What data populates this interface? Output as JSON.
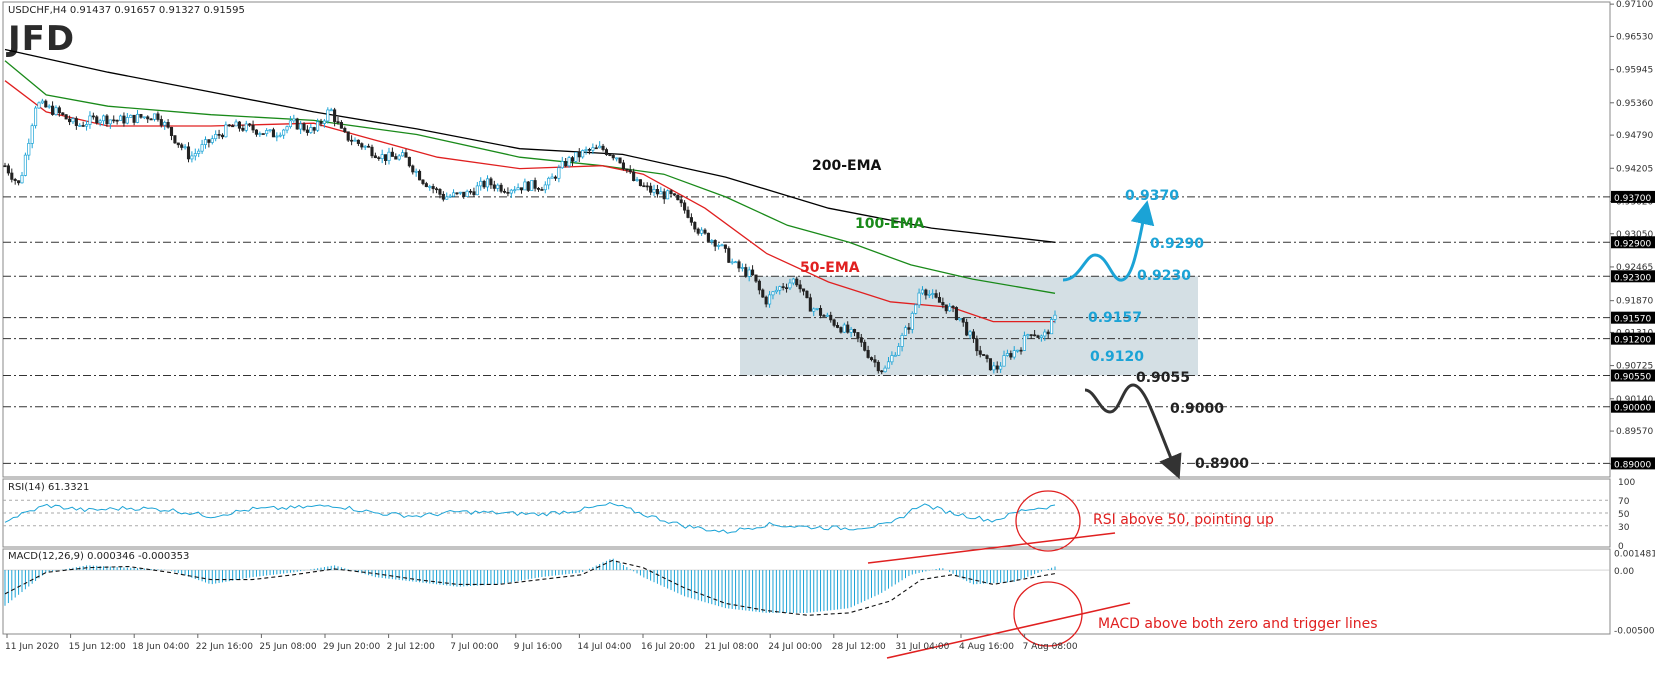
{
  "header": {
    "symbol_line": "USDCHF,H4  0.91437 0.91657 0.91327 0.91595",
    "logo": "JFD"
  },
  "chart_data": {
    "type": "candlestick",
    "symbol": "USDCHF",
    "timeframe": "H4",
    "ohlc_header": {
      "open": 0.91437,
      "high": 0.91657,
      "low": 0.91327,
      "close": 0.91595
    },
    "ylim": [
      0.8876,
      0.9712
    ],
    "price_ticks": [
      "0.97100",
      "0.96530",
      "0.95945",
      "0.95360",
      "0.94790",
      "0.94205",
      "0.93620",
      "0.93050",
      "0.92465",
      "0.91870",
      "0.91310",
      "0.90725",
      "0.90140",
      "0.89570",
      "0.88990"
    ],
    "x_tick_labels": [
      "11 Jun 2020",
      "15 Jun 12:00",
      "18 Jun 04:00",
      "22 Jun 16:00",
      "25 Jun 08:00",
      "29 Jun 20:00",
      "2 Jul 12:00",
      "7 Jul 00:00",
      "9 Jul 16:00",
      "14 Jul 04:00",
      "16 Jul 20:00",
      "21 Jul 08:00",
      "24 Jul 00:00",
      "28 Jul 12:00",
      "31 Jul 04:00",
      "4 Aug 16:00",
      "7 Aug 08:00"
    ],
    "price_path": [
      [
        0,
        0.9425
      ],
      [
        0.7,
        0.939
      ],
      [
        1.5,
        0.9535
      ],
      [
        2.5,
        0.952
      ],
      [
        3.5,
        0.9495
      ],
      [
        4.5,
        0.951
      ],
      [
        5.5,
        0.9505
      ],
      [
        6.5,
        0.951
      ],
      [
        7.4,
        0.9515
      ],
      [
        8.2,
        0.9475
      ],
      [
        9.0,
        0.944
      ],
      [
        10.0,
        0.947
      ],
      [
        11.0,
        0.9495
      ],
      [
        12.0,
        0.949
      ],
      [
        13.0,
        0.948
      ],
      [
        14.0,
        0.95
      ],
      [
        15.0,
        0.9485
      ],
      [
        15.8,
        0.9525
      ],
      [
        16.4,
        0.948
      ],
      [
        17.4,
        0.946
      ],
      [
        18.4,
        0.944
      ],
      [
        19.4,
        0.944
      ],
      [
        20.3,
        0.94
      ],
      [
        21.3,
        0.937
      ],
      [
        22.4,
        0.9375
      ],
      [
        23.4,
        0.9395
      ],
      [
        24.3,
        0.9385
      ],
      [
        25.3,
        0.939
      ],
      [
        26.3,
        0.939
      ],
      [
        27.2,
        0.943
      ],
      [
        28.2,
        0.945
      ],
      [
        29.0,
        0.9455
      ],
      [
        29.8,
        0.944
      ],
      [
        30.6,
        0.9395
      ],
      [
        31.4,
        0.938
      ],
      [
        32.4,
        0.937
      ],
      [
        33.2,
        0.934
      ],
      [
        33.8,
        0.9305
      ],
      [
        34.6,
        0.929
      ],
      [
        35.4,
        0.925
      ],
      [
        36.3,
        0.923
      ],
      [
        36.9,
        0.9185
      ],
      [
        37.6,
        0.921
      ],
      [
        38.4,
        0.9225
      ],
      [
        39.0,
        0.918
      ],
      [
        39.8,
        0.916
      ],
      [
        40.6,
        0.914
      ],
      [
        41.4,
        0.912
      ],
      [
        42.2,
        0.908
      ],
      [
        42.7,
        0.9062
      ],
      [
        43.4,
        0.911
      ],
      [
        44.0,
        0.915
      ],
      [
        44.5,
        0.9215
      ],
      [
        45.1,
        0.919
      ],
      [
        45.8,
        0.9175
      ],
      [
        46.4,
        0.9155
      ],
      [
        47.0,
        0.9115
      ],
      [
        47.6,
        0.908
      ],
      [
        48.1,
        0.9065
      ],
      [
        48.7,
        0.909
      ],
      [
        49.3,
        0.9105
      ],
      [
        49.8,
        0.9135
      ],
      [
        50.4,
        0.912
      ],
      [
        51.0,
        0.9155
      ]
    ],
    "series": [
      {
        "name": "200-EMA",
        "color": "#000000",
        "values": [
          [
            0,
            0.963
          ],
          [
            5,
            0.959
          ],
          [
            10,
            0.9555
          ],
          [
            15,
            0.952
          ],
          [
            20,
            0.949
          ],
          [
            25,
            0.9455
          ],
          [
            30,
            0.9445
          ],
          [
            35,
            0.9405
          ],
          [
            40,
            0.935
          ],
          [
            45,
            0.9315
          ],
          [
            51,
            0.929
          ]
        ]
      },
      {
        "name": "100-EMA",
        "color": "#1a8a1a",
        "values": [
          [
            0,
            0.961
          ],
          [
            2,
            0.955
          ],
          [
            5,
            0.953
          ],
          [
            10,
            0.9515
          ],
          [
            15,
            0.9505
          ],
          [
            20,
            0.948
          ],
          [
            25,
            0.944
          ],
          [
            29,
            0.9425
          ],
          [
            32,
            0.941
          ],
          [
            35,
            0.937
          ],
          [
            38,
            0.932
          ],
          [
            41,
            0.929
          ],
          [
            44,
            0.925
          ],
          [
            47,
            0.9225
          ],
          [
            51,
            0.92
          ]
        ]
      },
      {
        "name": "50-EMA",
        "color": "#e02020",
        "values": [
          [
            0,
            0.9575
          ],
          [
            2,
            0.952
          ],
          [
            5,
            0.9495
          ],
          [
            10,
            0.9495
          ],
          [
            15,
            0.95
          ],
          [
            18,
            0.947
          ],
          [
            21,
            0.944
          ],
          [
            25,
            0.942
          ],
          [
            29,
            0.9425
          ],
          [
            31,
            0.941
          ],
          [
            34,
            0.935
          ],
          [
            37,
            0.927
          ],
          [
            40,
            0.922
          ],
          [
            43,
            0.9185
          ],
          [
            46,
            0.9175
          ],
          [
            48,
            0.915
          ],
          [
            51,
            0.915
          ]
        ]
      }
    ],
    "horizontal_levels": [
      "0.93700",
      "0.92900",
      "0.92300",
      "0.91570",
      "0.91200",
      "0.90550",
      "0.90000",
      "0.89000"
    ],
    "level_values": [
      0.937,
      0.929,
      0.923,
      0.9157,
      0.912,
      0.9055,
      0.9,
      0.89
    ],
    "range_box": {
      "top": 0.923,
      "bottom": 0.9055,
      "color": "#ccd9df"
    },
    "annotations": {
      "ema_labels": [
        "200-EMA",
        "100-EMA",
        "50-EMA"
      ],
      "blue_labels": [
        "0.9370",
        "0.9290",
        "0.9230",
        "0.9157",
        "0.9120"
      ],
      "black_labels": [
        "0.9055",
        "0.9000",
        "0.8900"
      ],
      "blue_color": "#1ba3d6",
      "red_color": "#e02020"
    },
    "rsi": {
      "title": "RSI(14) 61.3321",
      "ticks": [
        "100",
        "70",
        "50",
        "30",
        "0"
      ],
      "levels": [
        70,
        50,
        30
      ],
      "values": [
        [
          0,
          38
        ],
        [
          2,
          62
        ],
        [
          4,
          54
        ],
        [
          6,
          58
        ],
        [
          8,
          55
        ],
        [
          10,
          45
        ],
        [
          12,
          56
        ],
        [
          14,
          58
        ],
        [
          16,
          62
        ],
        [
          18,
          50
        ],
        [
          20,
          45
        ],
        [
          22,
          52
        ],
        [
          24,
          50
        ],
        [
          26,
          48
        ],
        [
          28,
          55
        ],
        [
          29.5,
          64
        ],
        [
          31,
          48
        ],
        [
          33,
          30
        ],
        [
          35,
          20
        ],
        [
          37,
          32
        ],
        [
          39,
          28
        ],
        [
          41,
          26
        ],
        [
          43,
          32
        ],
        [
          44.5,
          64
        ],
        [
          46,
          50
        ],
        [
          48,
          38
        ],
        [
          49.5,
          55
        ],
        [
          51,
          61
        ]
      ],
      "note": "RSI above 50, pointing up"
    },
    "macd": {
      "title": "MACD(12,26,9) 0.000346 -0.000353",
      "ticks": [
        "0.001481",
        "0.00",
        "-0.005002"
      ],
      "ylim": [
        -0.0052,
        0.0016
      ],
      "histogram": [
        [
          0,
          -0.003
        ],
        [
          2,
          -0.0002
        ],
        [
          4,
          0.0004
        ],
        [
          6,
          0.0002
        ],
        [
          8,
          0.0
        ],
        [
          10,
          -0.0012
        ],
        [
          12,
          -0.0006
        ],
        [
          14,
          -0.0002
        ],
        [
          16,
          0.0004
        ],
        [
          18,
          -0.0006
        ],
        [
          20,
          -0.001
        ],
        [
          22,
          -0.0014
        ],
        [
          24,
          -0.0012
        ],
        [
          26,
          -0.0006
        ],
        [
          28,
          -0.0002
        ],
        [
          29.5,
          0.001
        ],
        [
          31,
          -0.0006
        ],
        [
          33,
          -0.0022
        ],
        [
          35,
          -0.0032
        ],
        [
          37,
          -0.0036
        ],
        [
          39,
          -0.0036
        ],
        [
          41,
          -0.0032
        ],
        [
          42.5,
          -0.002
        ],
        [
          44,
          -0.0004
        ],
        [
          45.5,
          0.0002
        ],
        [
          47,
          -0.0012
        ],
        [
          49,
          -0.001
        ],
        [
          51,
          0.0003
        ]
      ],
      "signal": [
        [
          0,
          -0.002
        ],
        [
          2,
          -0.0002
        ],
        [
          4,
          0.0002
        ],
        [
          6,
          0.0003
        ],
        [
          8,
          -0.0002
        ],
        [
          10,
          -0.0008
        ],
        [
          12,
          -0.0008
        ],
        [
          14,
          -0.0004
        ],
        [
          16,
          0.0001
        ],
        [
          18,
          -0.0003
        ],
        [
          20,
          -0.0008
        ],
        [
          22,
          -0.0012
        ],
        [
          24,
          -0.0012
        ],
        [
          26,
          -0.0008
        ],
        [
          28,
          -0.0004
        ],
        [
          29.5,
          0.0008
        ],
        [
          31,
          0.0002
        ],
        [
          33,
          -0.0015
        ],
        [
          35,
          -0.0028
        ],
        [
          37,
          -0.0034
        ],
        [
          39,
          -0.0038
        ],
        [
          41,
          -0.0036
        ],
        [
          43,
          -0.0026
        ],
        [
          44.5,
          -0.0008
        ],
        [
          46,
          -0.0004
        ],
        [
          48,
          -0.0012
        ],
        [
          51,
          -0.0003
        ]
      ],
      "note": "MACD above both zero and trigger lines"
    }
  }
}
